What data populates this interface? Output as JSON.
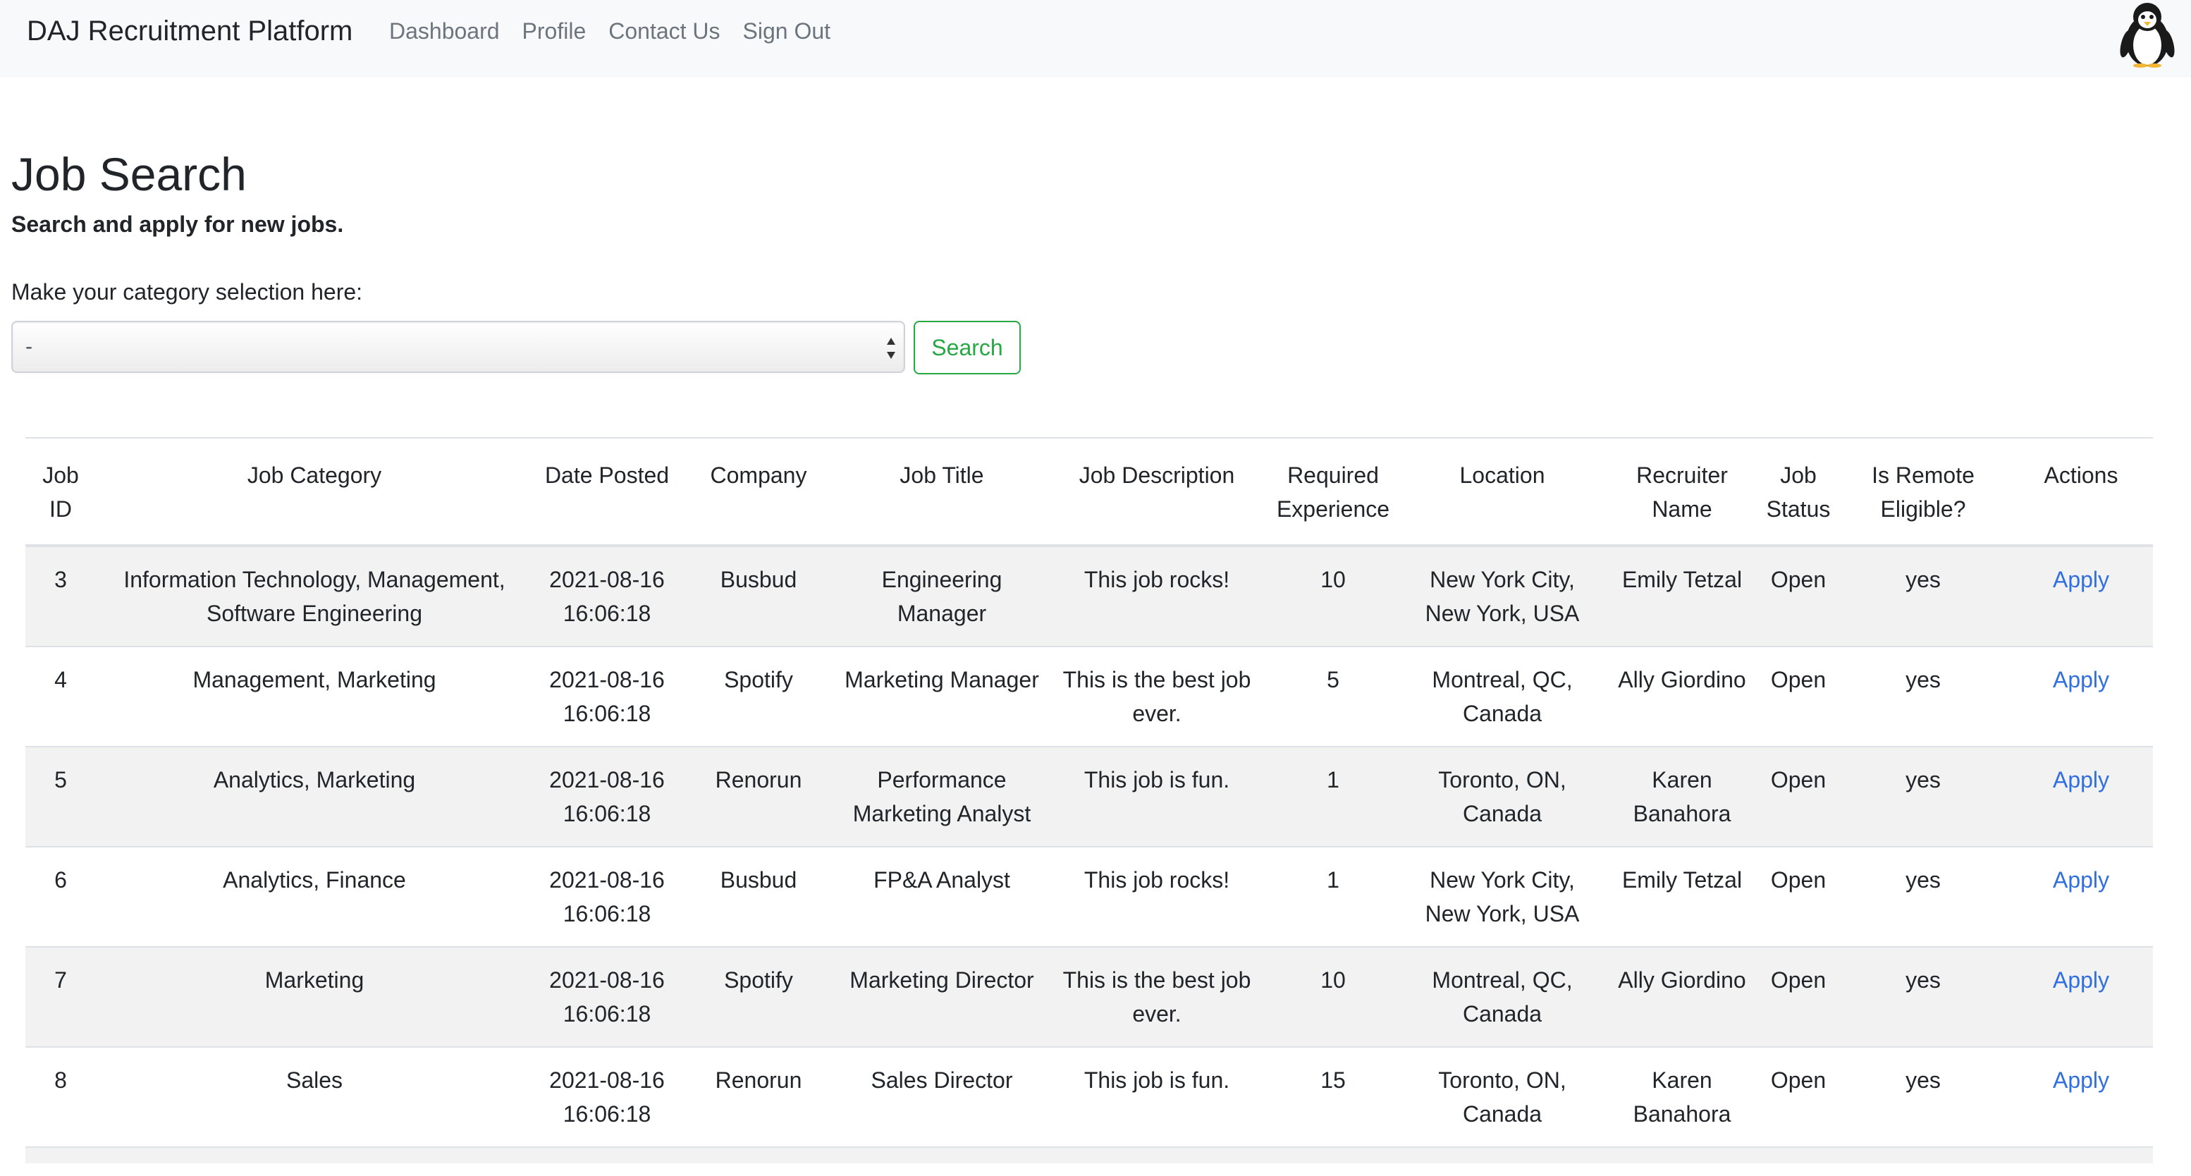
{
  "navbar": {
    "brand": "DAJ Recruitment Platform",
    "links": [
      "Dashboard",
      "Profile",
      "Contact Us",
      "Sign Out"
    ],
    "avatar_icon": "penguin-icon"
  },
  "page": {
    "title": "Job Search",
    "subtitle": "Search and apply for new jobs.",
    "category_label": "Make your category selection here:",
    "category_select_value": "-",
    "search_button": "Search"
  },
  "table": {
    "headers": [
      "Job ID",
      "Job Category",
      "Date Posted",
      "Company",
      "Job Title",
      "Job Description",
      "Required Experience",
      "Location",
      "Recruiter Name",
      "Job Status",
      "Is Remote Eligible?",
      "Actions"
    ],
    "rows": [
      [
        "3",
        "Information Technology, Management, Software Engineering",
        "2021-08-16 16:06:18",
        "Busbud",
        "Engineering Manager",
        "This job rocks!",
        "10",
        "New York City, New York, USA",
        "Emily Tetzal",
        "Open",
        "yes",
        "Apply"
      ],
      [
        "4",
        "Management, Marketing",
        "2021-08-16 16:06:18",
        "Spotify",
        "Marketing Manager",
        "This is the best job ever.",
        "5",
        "Montreal, QC, Canada",
        "Ally Giordino",
        "Open",
        "yes",
        "Apply"
      ],
      [
        "5",
        "Analytics, Marketing",
        "2021-08-16 16:06:18",
        "Renorun",
        "Performance Marketing Analyst",
        "This job is fun.",
        "1",
        "Toronto, ON, Canada",
        "Karen Banahora",
        "Open",
        "yes",
        "Apply"
      ],
      [
        "6",
        "Analytics, Finance",
        "2021-08-16 16:06:18",
        "Busbud",
        "FP&A Analyst",
        "This job rocks!",
        "1",
        "New York City, New York, USA",
        "Emily Tetzal",
        "Open",
        "yes",
        "Apply"
      ],
      [
        "7",
        "Marketing",
        "2021-08-16 16:06:18",
        "Spotify",
        "Marketing Director",
        "This is the best job ever.",
        "10",
        "Montreal, QC, Canada",
        "Ally Giordino",
        "Open",
        "yes",
        "Apply"
      ],
      [
        "8",
        "Sales",
        "2021-08-16 16:06:18",
        "Renorun",
        "Sales Director",
        "This job is fun.",
        "15",
        "Toronto, ON, Canada",
        "Karen Banahora",
        "Open",
        "yes",
        "Apply"
      ]
    ]
  },
  "colors": {
    "navbar_bg": "#f8f9fa",
    "link_muted": "#6c757d",
    "success": "#28a745",
    "link": "#2f6fe0",
    "stripe": "#f2f2f2"
  }
}
